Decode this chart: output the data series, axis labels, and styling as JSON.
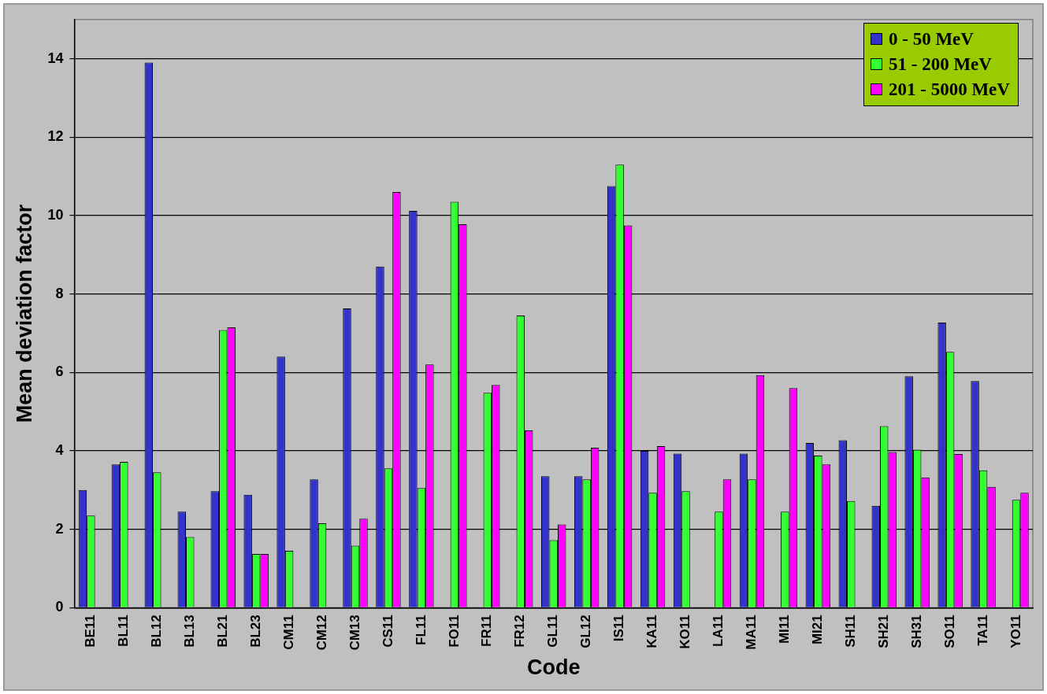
{
  "chart_data": {
    "type": "bar",
    "xlabel": "Code",
    "ylabel": "Mean deviation factor",
    "categories": [
      "BE11",
      "BL11",
      "BL12",
      "BL13",
      "BL21",
      "BL23",
      "CM11",
      "CM12",
      "CM13",
      "CS11",
      "FL11",
      "FO11",
      "FR11",
      "FR12",
      "GL11",
      "GL12",
      "IS11",
      "KA11",
      "KO11",
      "LA11",
      "MA11",
      "MI11",
      "MI21",
      "SH11",
      "SH21",
      "SH31",
      "SO11",
      "TA11",
      "YO11"
    ],
    "series": [
      {
        "name": "0 - 50 MeV",
        "color": "#3333cc",
        "values": [
          3.0,
          3.65,
          13.9,
          2.45,
          2.97,
          2.88,
          6.4,
          3.27,
          7.63,
          8.7,
          10.12,
          null,
          null,
          null,
          3.35,
          3.35,
          10.75,
          4.0,
          3.93,
          null,
          3.93,
          null,
          4.2,
          4.27,
          2.6,
          5.9,
          7.27,
          5.78,
          null
        ]
      },
      {
        "name": "51 - 200 MeV",
        "color": "#33ff33",
        "values": [
          2.35,
          3.72,
          3.45,
          1.8,
          7.08,
          1.37,
          1.45,
          2.15,
          1.58,
          3.55,
          3.05,
          10.35,
          5.48,
          7.45,
          1.72,
          3.27,
          11.3,
          2.93,
          2.97,
          2.45,
          3.27,
          2.45,
          3.88,
          2.72,
          4.63,
          4.03,
          6.52,
          3.5,
          2.75
        ]
      },
      {
        "name": "201 - 5000 MeV",
        "color": "#ff00ff",
        "values": [
          null,
          null,
          null,
          null,
          7.15,
          1.37,
          null,
          null,
          2.27,
          10.6,
          6.2,
          9.78,
          5.68,
          4.52,
          2.12,
          4.08,
          9.75,
          4.12,
          null,
          3.27,
          5.93,
          5.6,
          3.65,
          null,
          3.97,
          3.32,
          3.92,
          3.08,
          2.93
        ]
      }
    ],
    "ylim": [
      0,
      15
    ],
    "yticks": [
      0,
      2,
      4,
      6,
      8,
      10,
      12,
      14
    ],
    "grid": "y",
    "legend": "top right"
  }
}
